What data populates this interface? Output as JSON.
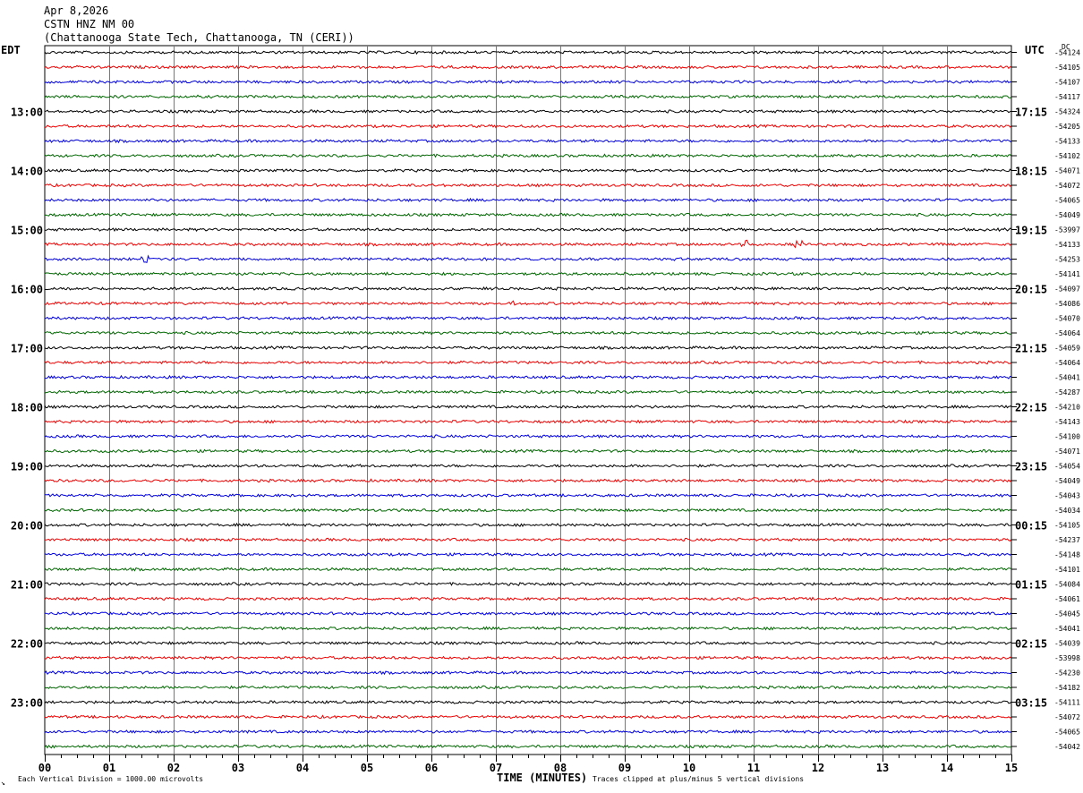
{
  "header": {
    "date": "Apr 8,2026",
    "station": "CSTN HNZ NM 00",
    "location": "(Chattanooga State Tech, Chattanooga, TN (CERI))"
  },
  "left_axis_label": "EDT",
  "right_axis_label": "UTC",
  "dc_label": "DC",
  "footer": {
    "left": "Each Vertical Division = 1000.00 microvolts",
    "right": "Traces clipped at plus/minus 5 vertical divisions",
    "corner": "↘"
  },
  "chart_data": {
    "type": "line",
    "xlabel": "TIME (MINUTES)",
    "xlim": [
      0,
      15
    ],
    "x_ticks": [
      "00",
      "01",
      "02",
      "03",
      "04",
      "05",
      "06",
      "07",
      "08",
      "09",
      "10",
      "11",
      "12",
      "13",
      "14",
      "15"
    ],
    "series_colors": [
      "#000000",
      "#ee0000",
      "#0000dd",
      "#006600"
    ],
    "left_hour_labels": [
      "13:00",
      "14:00",
      "15:00",
      "16:00",
      "17:00",
      "18:00",
      "19:00",
      "20:00",
      "21:00",
      "22:00",
      "23:00"
    ],
    "right_hour_labels": [
      "17:15",
      "18:15",
      "19:15",
      "20:15",
      "21:15",
      "22:15",
      "23:15",
      "00:15",
      "01:15",
      "02:15",
      "03:15"
    ],
    "trace_dc_values": [
      "-54124",
      "-54105",
      "-54107",
      "-54117",
      "-54324",
      "-54205",
      "-54133",
      "-54102",
      "-54071",
      "-54072",
      "-54065",
      "-54049",
      "-53997",
      "-54133",
      "-54253",
      "-54141",
      "-54097",
      "-54086",
      "-54070",
      "-54064",
      "-54059",
      "-54064",
      "-54041",
      "-54287",
      "-54210",
      "-54143",
      "-54100",
      "-54071",
      "-54054",
      "-54049",
      "-54043",
      "-54034",
      "-54105",
      "-54237",
      "-54148",
      "-54101",
      "-54084",
      "-54061",
      "-54045",
      "-54041",
      "-54039",
      "-53998",
      "-54230",
      "-54182",
      "-54111",
      "-54072",
      "-54065",
      "-54042"
    ],
    "events": [
      {
        "trace": 14,
        "minute": 1.55,
        "amp": 4
      },
      {
        "trace": 13,
        "minute": 10.85,
        "amp": 6
      },
      {
        "trace": 13,
        "minute": 11.7,
        "amp": 4
      },
      {
        "trace": 17,
        "minute": 7.25,
        "amp": 3
      }
    ]
  }
}
